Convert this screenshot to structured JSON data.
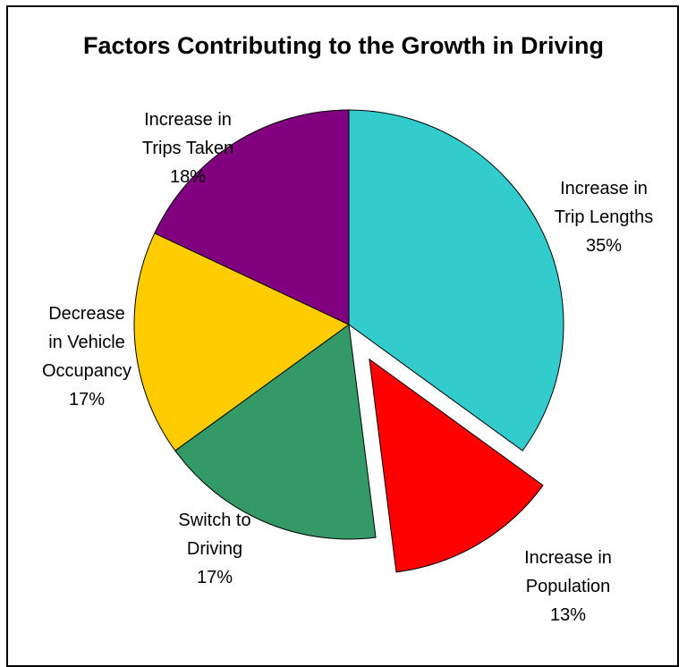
{
  "chart_data": {
    "type": "pie",
    "title": "Factors Contributing to the Growth in Driving",
    "slices": [
      {
        "name": "Increase in Trip Lengths",
        "label_lines": [
          "Increase in",
          "Trip Lengths"
        ],
        "value": 35,
        "value_label": "35%",
        "color": "#33CCCC",
        "exploded": false
      },
      {
        "name": "Increase in Population",
        "label_lines": [
          "Increase in",
          "Population"
        ],
        "value": 13,
        "value_label": "13%",
        "color": "#FF0000",
        "exploded": true
      },
      {
        "name": "Switch to Driving",
        "label_lines": [
          "Switch to",
          "Driving"
        ],
        "value": 17,
        "value_label": "17%",
        "color": "#339966",
        "exploded": false
      },
      {
        "name": "Decrease in Vehicle Occupancy",
        "label_lines": [
          "Decrease",
          "in Vehicle",
          "Occupancy"
        ],
        "value": 17,
        "value_label": "17%",
        "color": "#FFCC00",
        "exploded": false
      },
      {
        "name": "Increase in Trips Taken",
        "label_lines": [
          "Increase in",
          "Trips Taken"
        ],
        "value": 18,
        "value_label": "18%",
        "color": "#800080",
        "exploded": false
      }
    ],
    "start_angle": "12 o'clock",
    "direction": "clockwise",
    "legend": "none"
  }
}
